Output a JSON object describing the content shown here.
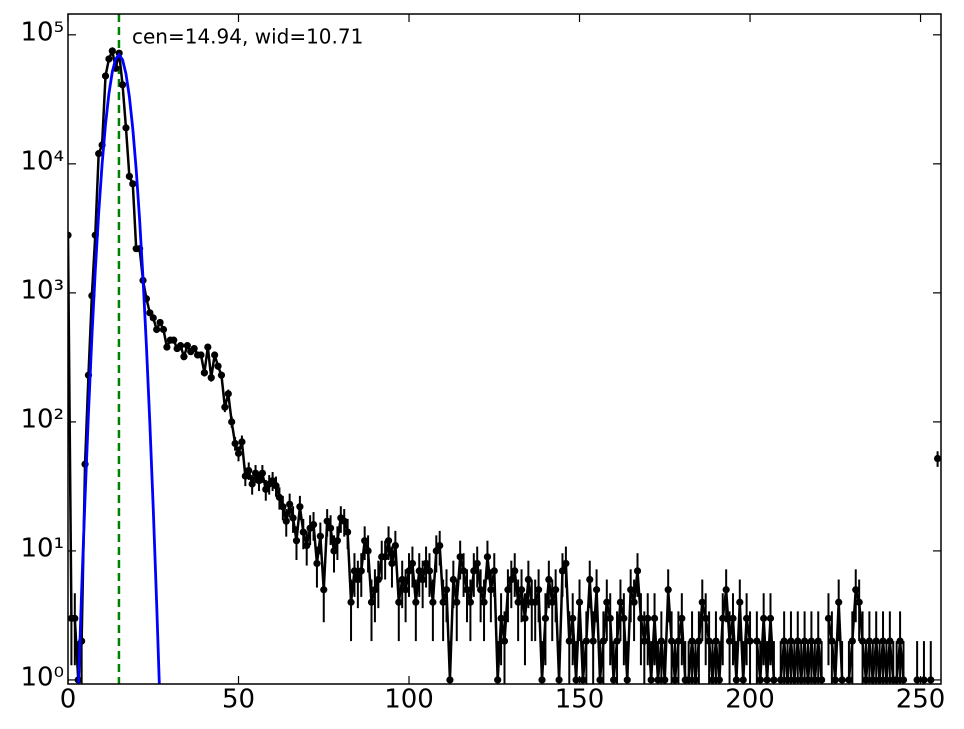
{
  "chart_data": {
    "type": "line",
    "annotation": "cen=14.94, wid=10.71",
    "annotation_color": "#008000",
    "vline": {
      "x": 14.94,
      "color": "#008000"
    },
    "log_y": true,
    "xlim": [
      0,
      256
    ],
    "xticks": [
      0,
      50,
      100,
      150,
      200,
      250
    ],
    "ylim": [
      0.93,
      145000
    ],
    "yticks": [
      {
        "value": 1,
        "label": "10⁰"
      },
      {
        "value": 10,
        "label": "10¹"
      },
      {
        "value": 100,
        "label": "10²"
      },
      {
        "value": 1000,
        "label": "10³"
      },
      {
        "value": 10000,
        "label": "10⁴"
      },
      {
        "value": 100000,
        "label": "10⁵"
      }
    ],
    "series": [
      {
        "color": "#000000",
        "markers": true,
        "x": [
          0,
          1,
          2,
          3,
          4,
          5,
          6,
          7,
          8,
          9,
          10,
          11,
          12,
          13,
          14,
          15,
          16,
          17,
          18,
          19,
          20,
          21,
          22,
          23,
          24,
          25,
          26,
          27,
          28,
          29,
          30,
          31,
          32,
          33,
          34,
          35,
          36,
          37,
          38,
          39,
          40,
          41,
          42,
          43,
          44,
          45,
          46,
          47,
          48,
          49,
          50,
          51,
          52,
          53,
          54,
          55,
          56,
          57,
          58,
          59,
          60,
          61,
          62,
          63,
          64,
          65,
          66,
          67,
          68,
          69,
          70,
          71,
          72,
          73,
          74,
          75,
          76,
          77,
          78,
          79,
          80,
          81,
          82,
          83,
          84,
          85,
          86,
          87,
          88,
          89,
          90,
          91,
          92,
          93,
          94,
          95,
          96,
          97,
          98,
          99,
          100,
          101,
          102,
          103,
          104,
          105,
          106,
          107,
          108,
          109,
          110,
          111,
          112,
          113,
          114,
          115,
          116,
          117,
          118,
          119,
          120,
          121,
          122,
          123,
          124,
          125,
          126,
          127,
          128,
          129,
          130,
          131,
          132,
          133,
          134,
          135,
          136,
          137,
          138,
          139,
          140,
          141,
          142,
          143,
          144,
          145,
          146,
          147,
          148,
          149,
          150,
          151,
          152,
          153,
          154,
          155,
          156,
          157,
          158,
          159,
          160,
          161,
          162,
          163,
          164,
          165,
          166,
          167,
          168,
          169,
          170,
          171,
          172,
          173,
          174,
          175,
          176,
          177,
          178,
          179,
          180,
          181,
          182,
          183,
          184,
          185,
          186,
          187,
          188,
          189,
          190,
          191,
          192,
          193,
          194,
          195,
          196,
          197,
          198,
          199,
          200,
          201,
          202,
          203,
          204,
          205,
          206,
          207,
          208,
          209,
          210,
          211,
          212,
          213,
          214,
          215,
          216,
          217,
          218,
          219,
          220,
          221,
          222,
          223,
          224,
          225,
          226,
          227,
          228,
          229,
          230,
          231,
          232,
          233,
          234,
          235,
          236,
          237,
          238,
          239,
          240,
          241,
          242,
          243,
          244,
          245,
          246,
          247,
          248,
          249,
          250,
          251,
          252,
          253,
          254,
          255
        ],
        "values": [
          2800,
          3,
          3,
          1,
          2,
          47,
          230,
          950,
          2800,
          12000,
          14000,
          48000,
          65000,
          75000,
          55000,
          72000,
          41000,
          19000,
          8000,
          7000,
          2200,
          2200,
          1250,
          900,
          700,
          640,
          520,
          590,
          520,
          380,
          430,
          430,
          370,
          390,
          320,
          390,
          350,
          370,
          330,
          330,
          240,
          380,
          220,
          330,
          270,
          230,
          130,
          165,
          100,
          68,
          57,
          70,
          38,
          42,
          33,
          40,
          35,
          40,
          30,
          33,
          35,
          32,
          26,
          22,
          17,
          23,
          18,
          12,
          22,
          14,
          11,
          15,
          16,
          8,
          13,
          5,
          17,
          15,
          10,
          12,
          18,
          17,
          14,
          4,
          7,
          6,
          7,
          12,
          10,
          4,
          5,
          6,
          9,
          9,
          12,
          8,
          11,
          4,
          6,
          5,
          7,
          8,
          4,
          7,
          6,
          8,
          7,
          4,
          10,
          11,
          4,
          5,
          1,
          6,
          4,
          9,
          7,
          5,
          4,
          7,
          8,
          5,
          4,
          9,
          5,
          7,
          1,
          3,
          2,
          5,
          6,
          7,
          4,
          5,
          3,
          6,
          4,
          4,
          5,
          1,
          3,
          6,
          4,
          5,
          1,
          7,
          8,
          2,
          3,
          1,
          4,
          1,
          2,
          6,
          2,
          5,
          1,
          2,
          4,
          3,
          1,
          2,
          4,
          3,
          1,
          5,
          4,
          7,
          3,
          2,
          3,
          1,
          3,
          1,
          2,
          1,
          5,
          2,
          1,
          2,
          3,
          1,
          1,
          2,
          1,
          2,
          4,
          3,
          2,
          1,
          2,
          1,
          3,
          5,
          2,
          3,
          1,
          4,
          1,
          3,
          2,
          null,
          2,
          1,
          3,
          1,
          3,
          1,
          null,
          1,
          2,
          1,
          2,
          1,
          2,
          1,
          2,
          1,
          2,
          1,
          2,
          1,
          null,
          3,
          2,
          1,
          4,
          1,
          null,
          1,
          2,
          5,
          4,
          2,
          1,
          2,
          1,
          2,
          1,
          2,
          1,
          2,
          1,
          1,
          2,
          1,
          null,
          null,
          null,
          1,
          null,
          1,
          null,
          1,
          null,
          52
        ],
        "errors": [
          53,
          1.7,
          1.7,
          1,
          1.4,
          6.9,
          15,
          31,
          53,
          110,
          118,
          219,
          255,
          274,
          235,
          268,
          202,
          138,
          89,
          84,
          47,
          47,
          35,
          30,
          26,
          25,
          23,
          24,
          23,
          19,
          21,
          21,
          19,
          20,
          18,
          20,
          19,
          19,
          18,
          18,
          15,
          19,
          15,
          18,
          16,
          15,
          11,
          13,
          10,
          8.2,
          7.5,
          8.4,
          6.2,
          6.5,
          5.7,
          6.3,
          5.9,
          6.3,
          5.5,
          5.7,
          5.9,
          5.7,
          5.1,
          4.7,
          4.1,
          4.8,
          4.2,
          3.5,
          4.7,
          3.7,
          3.3,
          3.9,
          4,
          2.8,
          3.6,
          2.2,
          4.1,
          3.9,
          3.2,
          3.5,
          4.2,
          4.1,
          3.7,
          2,
          2.6,
          2.4,
          2.6,
          3.5,
          3.2,
          2,
          2.2,
          2.4,
          3,
          3,
          3.5,
          2.8,
          3.3,
          2,
          2.4,
          2.2,
          2.6,
          2.8,
          2,
          2.6,
          2.4,
          2.8,
          2.6,
          2,
          3.2,
          3.3,
          2,
          2.2,
          1,
          2.4,
          2,
          3,
          2.6,
          2.2,
          2,
          2.6,
          2.8,
          2.2,
          2,
          3,
          2.2,
          2.6,
          1,
          1.7,
          1.4,
          2.2,
          2.4,
          2.6,
          2,
          2.2,
          1.7,
          2.4,
          2,
          2,
          2.2,
          1,
          1.7,
          2.4,
          2,
          2.2,
          1,
          2.6,
          2.8,
          1.4,
          1.7,
          1,
          2,
          1,
          1.4,
          2.4,
          1.4,
          2.2,
          1,
          1.4,
          2,
          1.7,
          1,
          1.4,
          2,
          1.7,
          1,
          2.2,
          2,
          2.6,
          1.7,
          1.4,
          1.7,
          1,
          1.7,
          1,
          1.4,
          1,
          2.2,
          1.4,
          1,
          1.4,
          1.7,
          1,
          1,
          1.4,
          1,
          1.4,
          2,
          1.7,
          1.4,
          1,
          1.4,
          1,
          1.7,
          2.2,
          1.4,
          1.7,
          1,
          2,
          1,
          1.7,
          1.4,
          null,
          1.4,
          1,
          1.7,
          1,
          1.7,
          1,
          null,
          1,
          1.4,
          1,
          1.4,
          1,
          1.4,
          1,
          1.4,
          1,
          1.4,
          1,
          1.4,
          1,
          null,
          1.7,
          1.4,
          1,
          2,
          1,
          null,
          1,
          1.4,
          2.2,
          2,
          1.4,
          1,
          1.4,
          1,
          1.4,
          1,
          1.4,
          1,
          1.4,
          1,
          1,
          1.4,
          1,
          null,
          null,
          null,
          1,
          null,
          1,
          null,
          1,
          null,
          7.2
        ]
      },
      {
        "color": "#0000ff",
        "markers": false,
        "x": [
          3,
          4,
          5,
          6,
          7,
          8,
          9,
          10,
          11,
          12,
          13,
          14,
          15,
          16,
          17,
          18,
          19,
          20,
          21,
          22,
          23,
          24,
          25,
          26,
          27
        ],
        "values": [
          0.78,
          4.9,
          25.9,
          117,
          453,
          1486,
          4167,
          9940,
          20230,
          35070,
          51800,
          65240,
          70000,
          63980,
          49840,
          33110,
          18690,
          9030,
          3700,
          1295,
          386,
          98,
          21.3,
          3.9,
          0.62
        ]
      }
    ]
  }
}
